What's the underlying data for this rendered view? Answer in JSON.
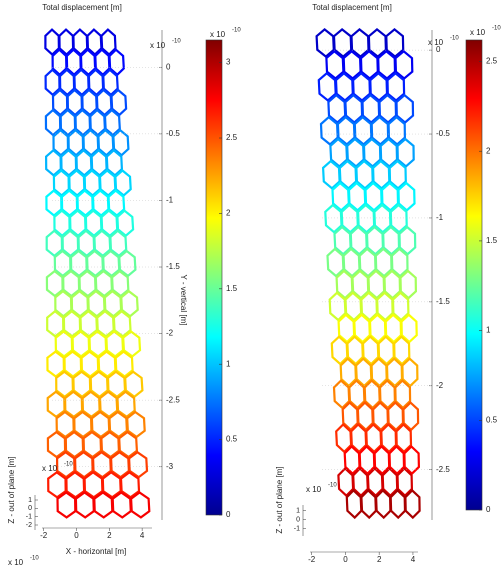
{
  "panels": [
    {
      "title": "Total displacement [m]",
      "y_axis_label": "Y - vertical [m]",
      "y_lim": [
        -3.4,
        0.28
      ],
      "y_ticks": [
        0,
        -0.5,
        -1,
        -1.5,
        -2,
        -2.5,
        -3
      ],
      "y_exponent": {
        "base": "x 10",
        "power": "-10"
      },
      "x_axis_label": "X - horizontal [m]",
      "x_lim": [
        -2.1,
        4.6
      ],
      "x_ticks": [
        -2,
        0,
        2,
        4
      ],
      "x_exponent": {
        "base": "x 10",
        "power": "-10"
      },
      "z_axis_label": "Z - out of plane [m]",
      "z_lim": [
        -2.6,
        1.6
      ],
      "z_ticks": [
        1,
        0,
        -1,
        -2
      ],
      "z_exponent": {
        "base": "x 10",
        "power": "-10"
      },
      "colorbar": {
        "range": [
          0,
          3.15
        ],
        "ticks": [
          0,
          0.5,
          1,
          1.5,
          2,
          2.5,
          3
        ],
        "exponent": {
          "base": "x 10",
          "power": "-10"
        }
      }
    },
    {
      "title": "Total displacement [m]",
      "y_lim": [
        -2.8,
        0.12
      ],
      "y_ticks": [
        0,
        -0.5,
        -1,
        -1.5,
        -2,
        -2.5
      ],
      "y_exponent": {
        "base": "x 10",
        "power": "-10"
      },
      "x_lim": [
        -2.1,
        4.3
      ],
      "x_ticks": [
        -2,
        0,
        2,
        4
      ],
      "z_axis_label": "Z - out of plane [m]",
      "z_lim": [
        -1.8,
        1.6
      ],
      "z_ticks": [
        1,
        0,
        -1
      ],
      "z_exponent": {
        "base": "x 10",
        "power": "-10"
      },
      "colorbar": {
        "range": [
          0,
          2.62
        ],
        "ticks": [
          0,
          0.5,
          1,
          1.5,
          2,
          2.5
        ],
        "exponent": {
          "base": "x 10",
          "power": "-10"
        }
      }
    }
  ]
}
